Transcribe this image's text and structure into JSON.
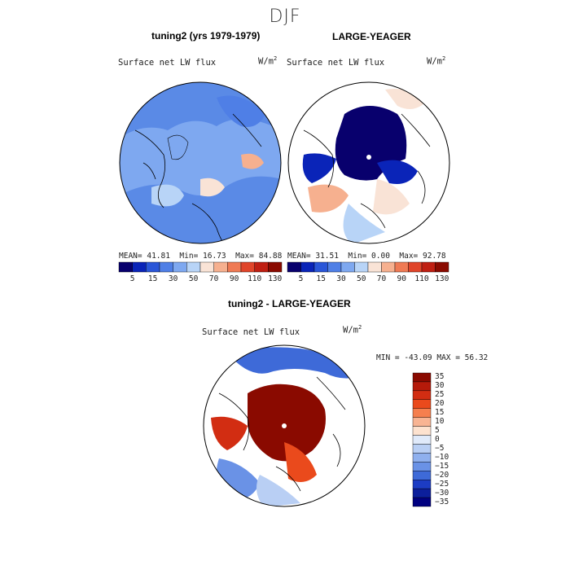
{
  "season": "DJF",
  "colors": {
    "sequential": [
      "#08006d",
      "#0a24b8",
      "#2a56d8",
      "#4f7fe6",
      "#7ea8f0",
      "#b8d4f7",
      "#f9e3d6",
      "#f6b08f",
      "#ef7a54",
      "#e0452a",
      "#bf1f12",
      "#8a0a00"
    ],
    "diverging": [
      "#8a0a00",
      "#b51a0a",
      "#d22d12",
      "#ea4a1c",
      "#f57f4e",
      "#f8b493",
      "#fde2cf",
      "#e0eafa",
      "#b9cff4",
      "#8fb0ee",
      "#6a92e6",
      "#3e6ad8",
      "#1c3cc4",
      "#0c1f9c",
      "#000080"
    ],
    "land_outline": "#000000",
    "ocean_blank": "#ffffff"
  },
  "panels": [
    {
      "title": "tuning2 (yrs 1979-1979)",
      "variable": "Surface net LW flux",
      "units": "W/m",
      "units_exp": "2",
      "mean_label": "MEAN=",
      "mean": "41.81",
      "min_label": "Min=",
      "min": "16.73",
      "max_label": "Max=",
      "max": "84.88"
    },
    {
      "title": "LARGE-YEAGER",
      "variable": "Surface net LW flux",
      "units": "W/m",
      "units_exp": "2",
      "mean_label": "MEAN=",
      "mean": "31.51",
      "min_label": "Min=",
      "min": "0.00",
      "max_label": "Max=",
      "max": "92.78"
    }
  ],
  "colorbar_ticks": [
    "5",
    "15",
    "30",
    "50",
    "70",
    "90",
    "110",
    "130"
  ],
  "diff_panel": {
    "title": "tuning2 - LARGE-YEAGER",
    "variable": "Surface net LW flux",
    "units": "W/m",
    "units_exp": "2",
    "stats_text": "MIN = -43.09 MAX =  56.32",
    "colorbar_ticks": [
      "35",
      "30",
      "25",
      "20",
      "15",
      "10",
      "5",
      "0",
      "-5",
      "-10",
      "-15",
      "-20",
      "-25",
      "-30",
      "-35"
    ]
  }
}
